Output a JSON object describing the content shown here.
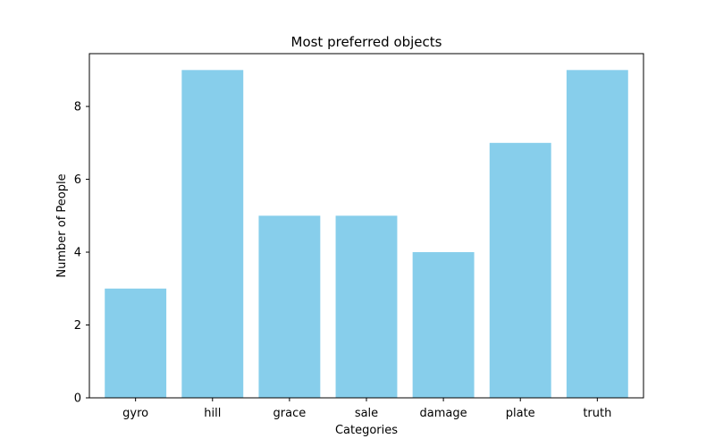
{
  "chart_data": {
    "type": "bar",
    "title": "Most preferred objects",
    "xlabel": "Categories",
    "ylabel": "Number of People",
    "categories": [
      "gyro",
      "hill",
      "grace",
      "sale",
      "damage",
      "plate",
      "truth"
    ],
    "values": [
      3,
      9,
      5,
      5,
      4,
      7,
      9
    ],
    "ylim": [
      0,
      9.45
    ],
    "yticks": [
      0,
      2,
      4,
      6,
      8
    ],
    "bar_color": "#87ceeb",
    "grid": false,
    "legend": "none"
  }
}
